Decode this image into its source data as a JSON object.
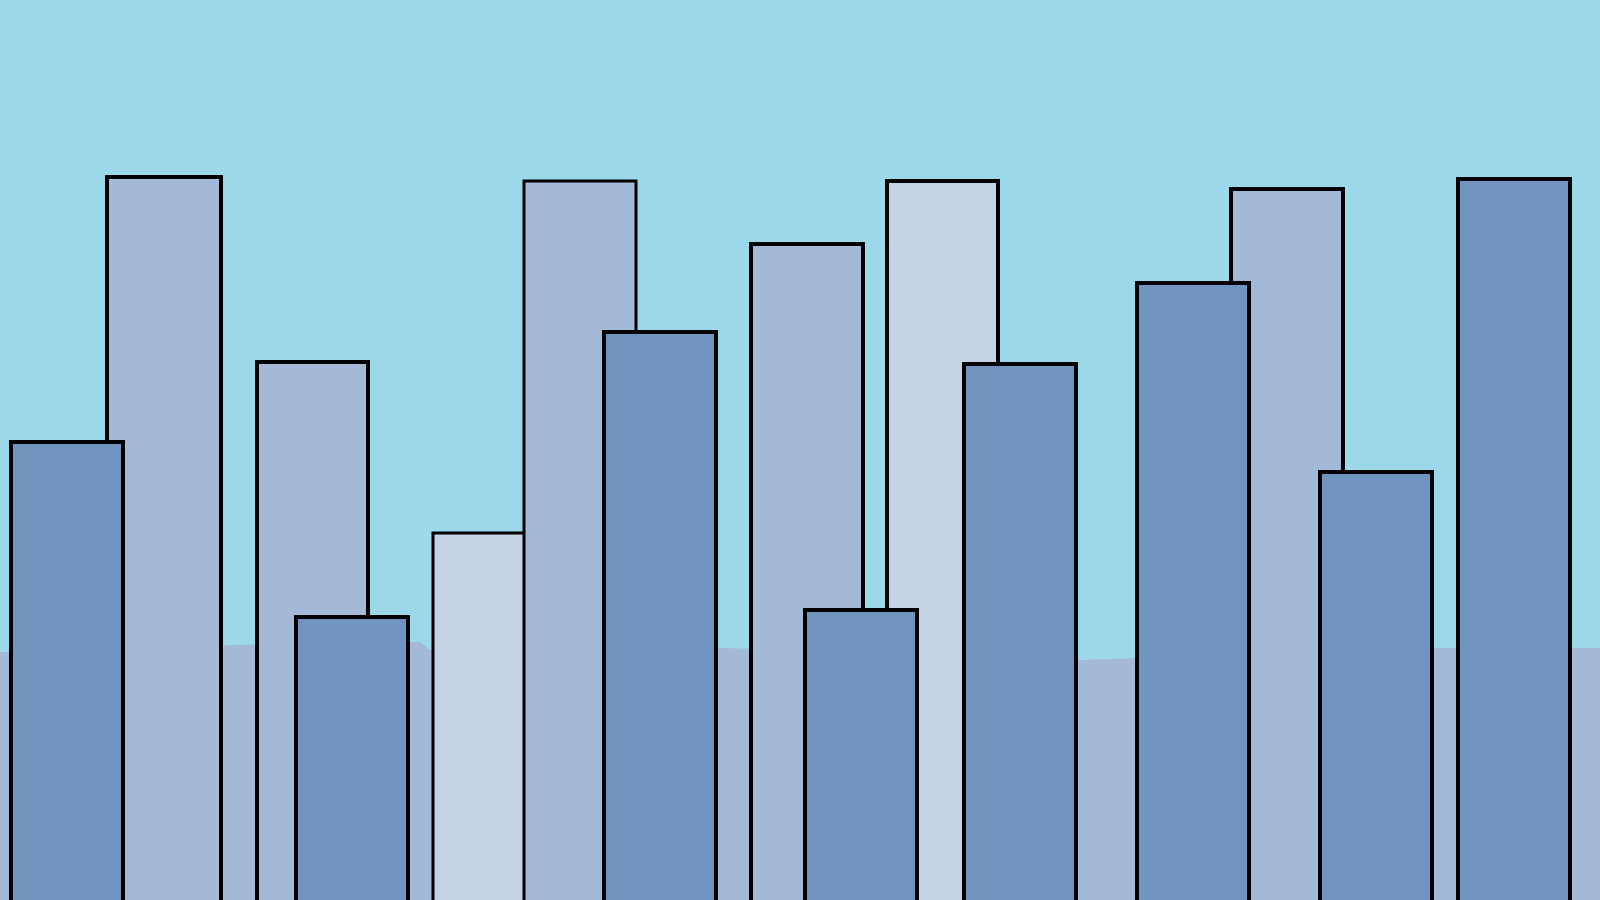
{
  "scene": {
    "description_free": true,
    "colors": {
      "sky": "#9bd9ea",
      "ground_strip": "#a4b8d8",
      "building_light": "#c6d3e6",
      "building_mid": "#a4b8d8",
      "building_dark": "#7093bf",
      "outline": "#000000"
    },
    "building_icon_names": [
      "skyline-building-icon"
    ],
    "building_count": 16
  }
}
